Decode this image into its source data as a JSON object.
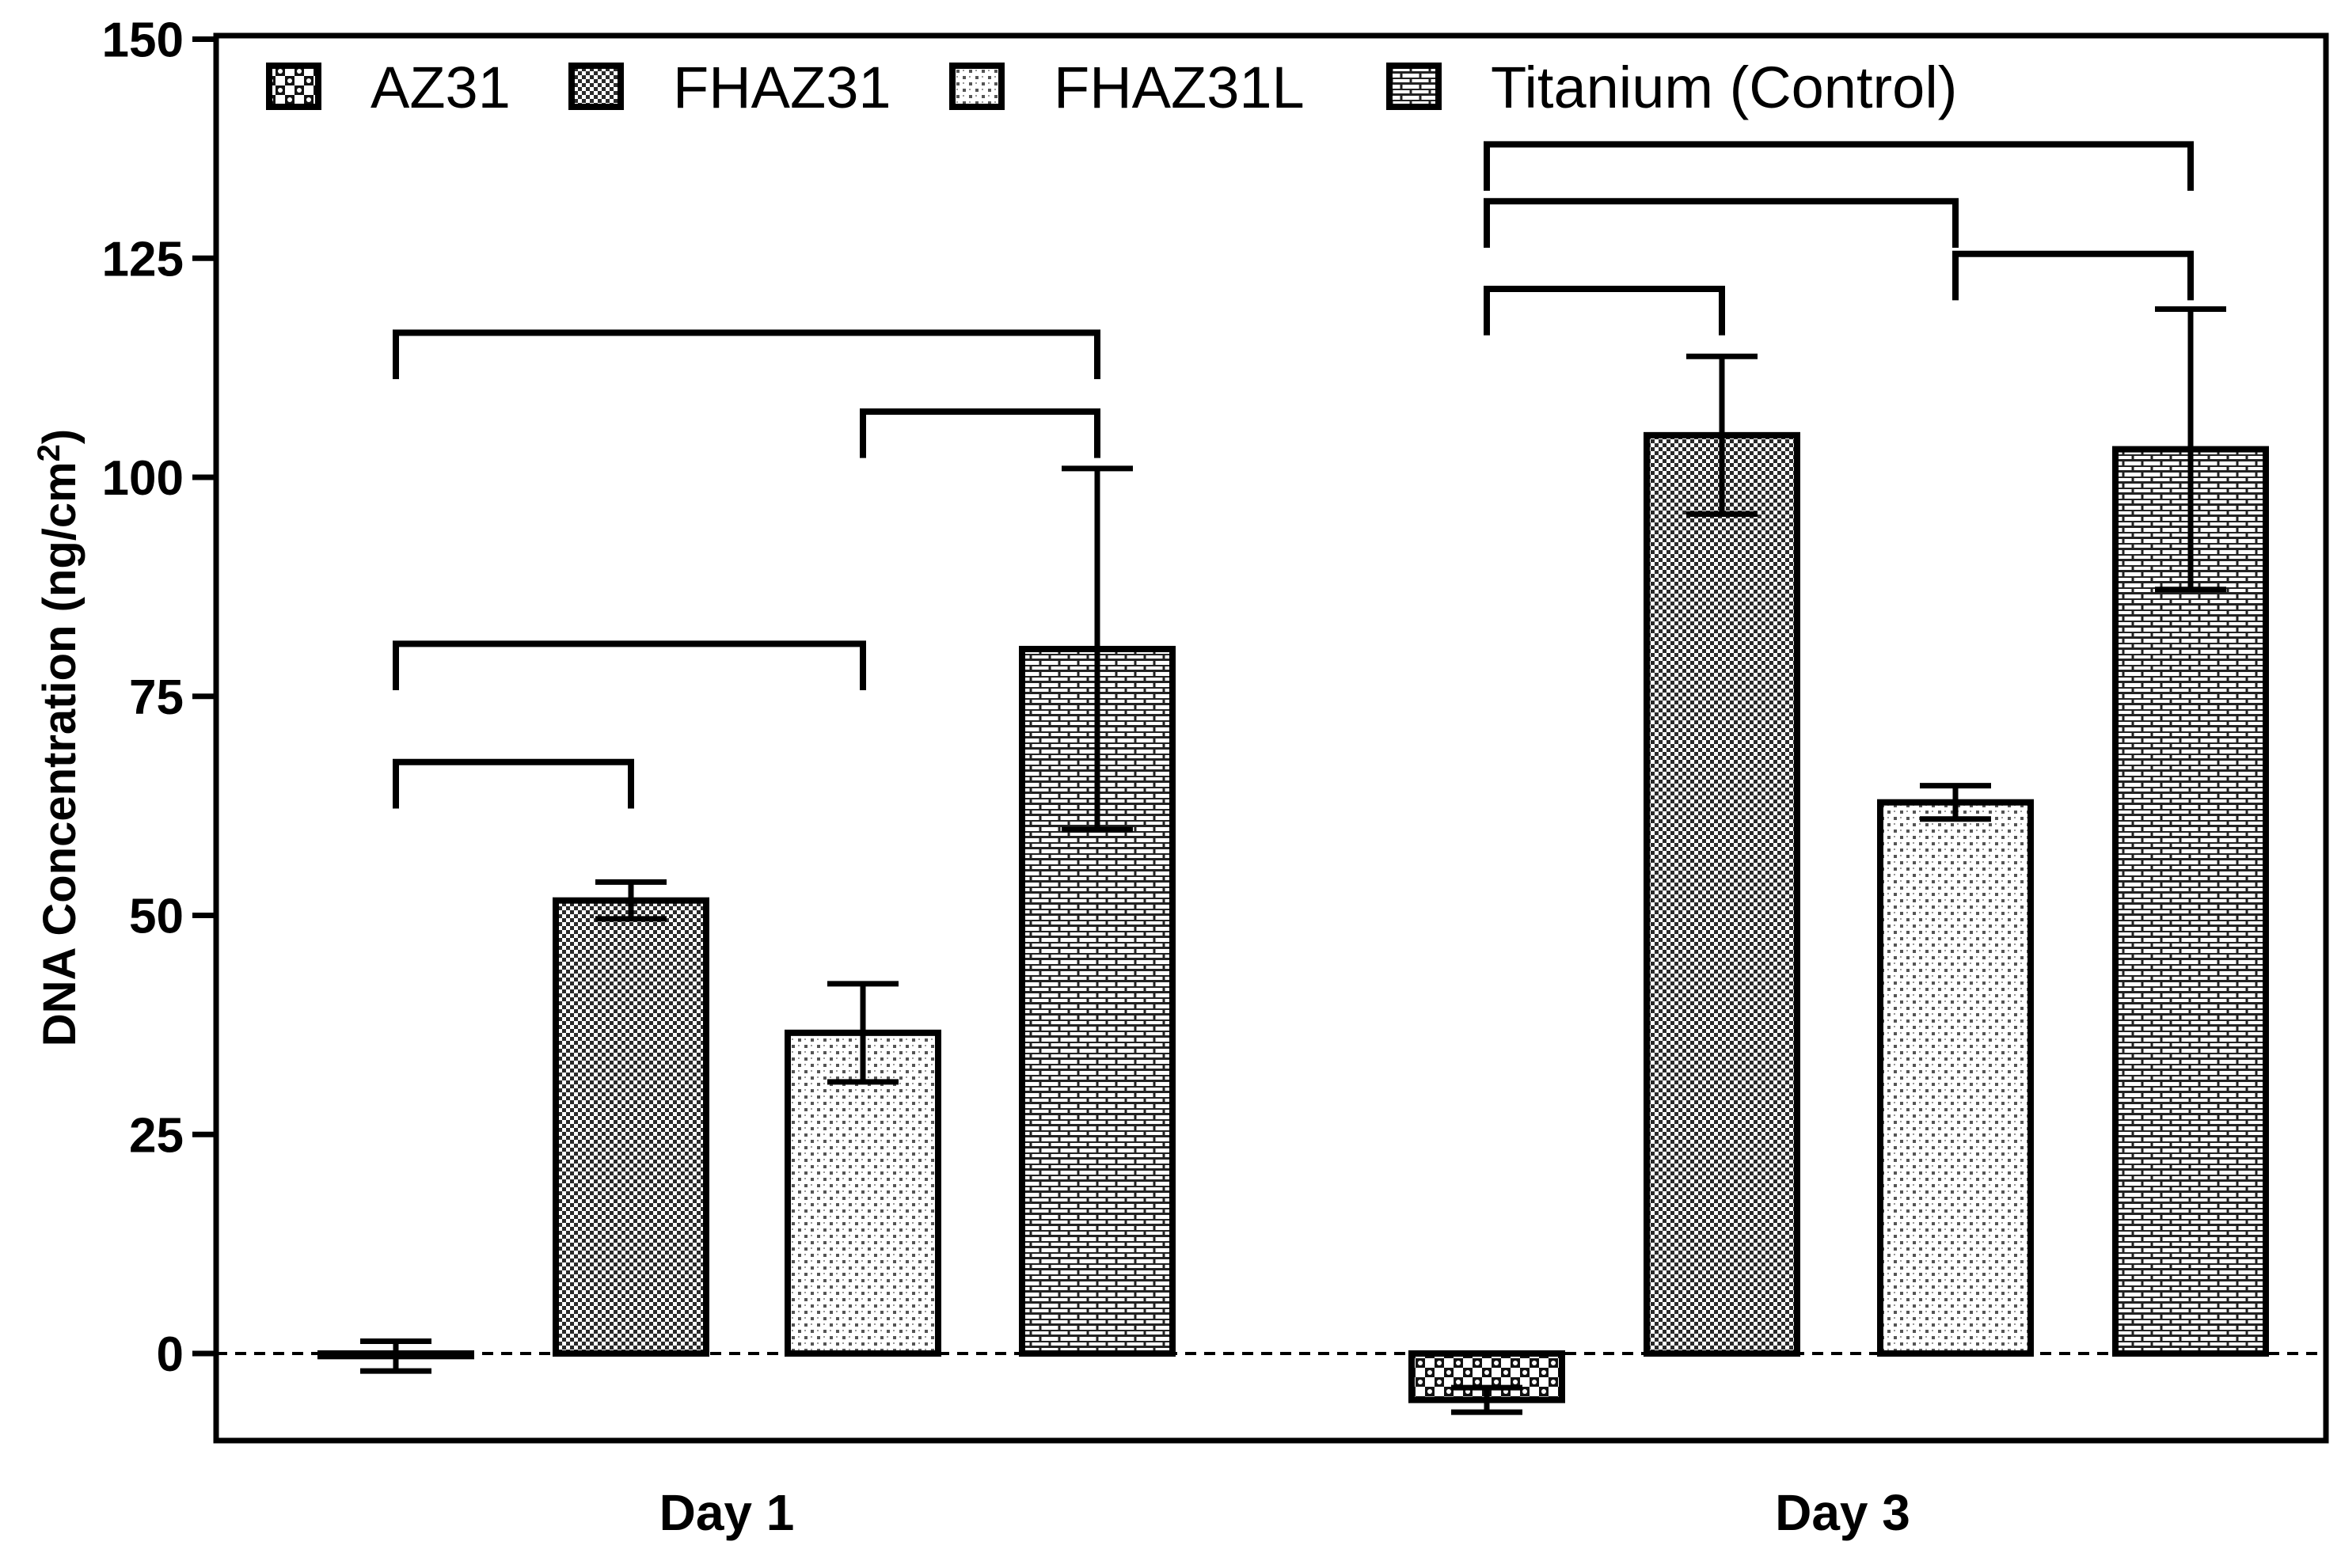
{
  "chart_data": {
    "type": "bar",
    "title": "",
    "xlabel": "",
    "ylabel": "DNA Concentration (ng/cm",
    "ylabel_superscript": "2",
    "ylabel_suffix": ")",
    "ylim": [
      -10,
      150
    ],
    "yticks": [
      0,
      25,
      50,
      75,
      100,
      125,
      150
    ],
    "categories": [
      "Day 1",
      "Day 3"
    ],
    "series": [
      {
        "name": "AZ31",
        "pattern": "pat-az31",
        "values": [
          -0.3,
          -5.3
        ],
        "errors": [
          1.7,
          1.4
        ]
      },
      {
        "name": "FHAZ31",
        "pattern": "pat-fhaz31",
        "values": [
          51.7,
          104.8
        ],
        "errors": [
          2.1,
          9.0
        ]
      },
      {
        "name": "FHAZ31L",
        "pattern": "pat-fhaz31l",
        "values": [
          36.6,
          62.9
        ],
        "errors": [
          5.6,
          1.9
        ]
      },
      {
        "name": "Titanium (Control)",
        "pattern": "pat-titanium",
        "values": [
          80.4,
          103.2
        ],
        "errors": [
          20.6,
          16.0
        ]
      }
    ],
    "significance_brackets": [
      {
        "category": 0,
        "from": 0,
        "to": 1,
        "y": 67.5
      },
      {
        "category": 0,
        "from": 0,
        "to": 2,
        "y": 81.0
      },
      {
        "category": 0,
        "from": 2,
        "to": 3,
        "y": 107.5
      },
      {
        "category": 0,
        "from": 0,
        "to": 3,
        "y": 116.5
      },
      {
        "category": 1,
        "from": 0,
        "to": 1,
        "y": 121.5
      },
      {
        "category": 1,
        "from": 2,
        "to": 3,
        "y": 125.5
      },
      {
        "category": 1,
        "from": 0,
        "to": 2,
        "y": 131.5
      },
      {
        "category": 1,
        "from": 0,
        "to": 3,
        "y": 138.0
      }
    ],
    "legend_position": "top-left",
    "zero_line": "dashed"
  }
}
